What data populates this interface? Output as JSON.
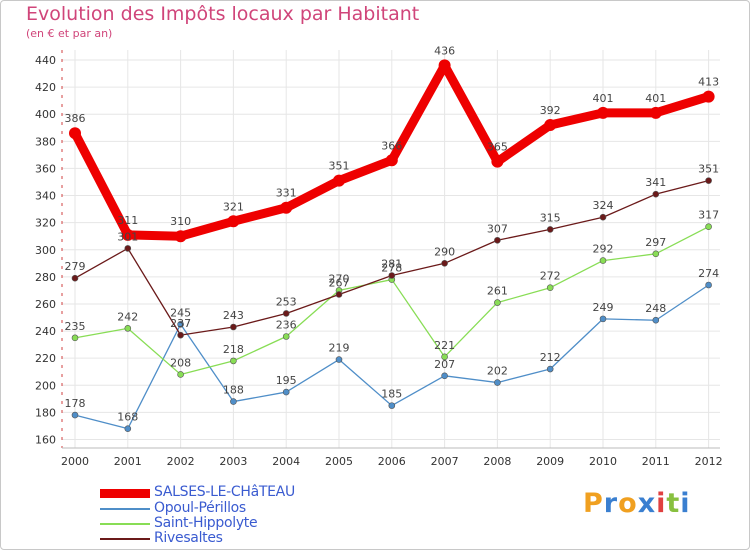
{
  "chart_data": {
    "type": "line",
    "title": "Evolution des Impôts locaux par Habitant",
    "subtitle": "(en € et par an)",
    "xlabel": "",
    "ylabel": "",
    "x": [
      "2000",
      "2001",
      "2002",
      "2003",
      "2004",
      "2005",
      "2006",
      "2007",
      "2008",
      "2009",
      "2010",
      "2011",
      "2012"
    ],
    "ylim": [
      160,
      440
    ],
    "yticks": [
      "160",
      "180",
      "200",
      "220",
      "240",
      "260",
      "280",
      "300",
      "320",
      "340",
      "360",
      "380",
      "400",
      "420",
      "440"
    ],
    "grid": true,
    "legend_position": "bottom-left",
    "series": [
      {
        "name": "SALSES-LE-CHâTEAU",
        "color": "#ee0000",
        "values": [
          386,
          311,
          310,
          321,
          331,
          351,
          366,
          436,
          365,
          392,
          401,
          401,
          413
        ]
      },
      {
        "name": "Opoul-Périllos",
        "color": "#4f8ec8",
        "values": [
          178,
          168,
          245,
          188,
          195,
          219,
          185,
          207,
          202,
          212,
          249,
          248,
          274
        ]
      },
      {
        "name": "Saint-Hippolyte",
        "color": "#88dd55",
        "values": [
          235,
          242,
          208,
          218,
          236,
          270,
          278,
          221,
          261,
          272,
          292,
          297,
          317
        ]
      },
      {
        "name": "Rivesaltes",
        "color": "#6b1a1a",
        "values": [
          279,
          301,
          237,
          243,
          253,
          267,
          281,
          290,
          307,
          315,
          324,
          341,
          351
        ]
      }
    ],
    "labels": {
      "SALSES-LE-CHâTEAU": [
        "386",
        "311",
        "310",
        "321",
        "331",
        "351",
        "366",
        "436",
        "365",
        "392",
        "401",
        "401",
        "413"
      ],
      "Opoul-Périllos": [
        "178",
        "168",
        "245",
        "188",
        "195",
        "219",
        "185",
        "207",
        "202",
        "212",
        "249",
        "248",
        "274"
      ],
      "Saint-Hippolyte": [
        "235",
        "242",
        "208",
        "218",
        "236",
        "270",
        "278",
        "221",
        "261",
        "272",
        "292",
        "297",
        "317"
      ],
      "Rivesaltes": [
        "279",
        "301",
        "237",
        "243",
        "253",
        "267",
        "281",
        "290",
        "307",
        "315",
        "324",
        "341",
        "351"
      ]
    }
  },
  "logo": {
    "text": "Proxiti",
    "colors": [
      "#f0a020",
      "#3a7fd0",
      "#f0a020",
      "#3a7fd0",
      "#e04040",
      "#88c040",
      "#3a7fd0"
    ]
  }
}
